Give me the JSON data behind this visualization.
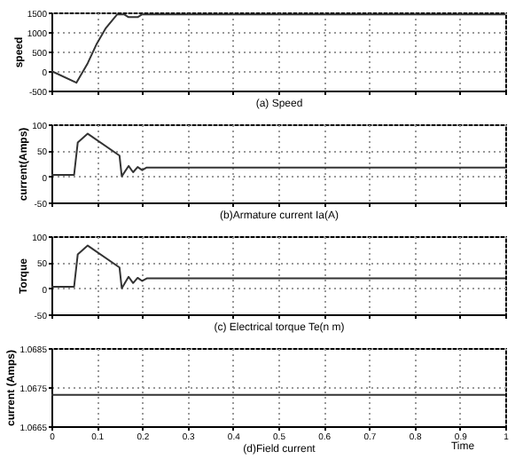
{
  "chart_data": [
    {
      "type": "line",
      "xlabel": "(a) Speed",
      "ylabel": "speed",
      "x": [
        0,
        0.055,
        0.08,
        0.1,
        0.12,
        0.145,
        0.16,
        0.17,
        0.19,
        0.2,
        1
      ],
      "values": [
        0,
        -300,
        200,
        700,
        1100,
        1450,
        1450,
        1380,
        1380,
        1450,
        1450
      ],
      "color": "#333333",
      "xlim": [
        0,
        1
      ],
      "xticks": [
        0,
        0.1,
        0.2,
        0.3,
        0.4,
        0.5,
        0.6,
        0.7,
        0.8,
        0.9,
        1
      ],
      "ylim": [
        -500,
        1500
      ],
      "yticks": [
        -500,
        0,
        500,
        1000,
        1500
      ],
      "grid": true,
      "tick_labels": "y"
    },
    {
      "type": "line",
      "xlabel": "(b)Armature current Ia(A)",
      "ylabel": "current(Amps)",
      "x": [
        0,
        0.05,
        0.058,
        0.08,
        0.15,
        0.155,
        0.17,
        0.18,
        0.19,
        0.2,
        0.21,
        1
      ],
      "values": [
        3,
        3,
        65,
        82,
        40,
        0,
        20,
        8,
        18,
        12,
        17,
        17
      ],
      "color": "#333333",
      "xlim": [
        0,
        1
      ],
      "xticks": [
        0,
        0.1,
        0.2,
        0.3,
        0.4,
        0.5,
        0.6,
        0.7,
        0.8,
        0.9,
        1
      ],
      "ylim": [
        -50,
        100
      ],
      "yticks": [
        -50,
        0,
        50,
        100
      ],
      "grid": true,
      "tick_labels": "y"
    },
    {
      "type": "line",
      "xlabel": "(c) Electrical torque Te(n m)",
      "ylabel": "Torque",
      "x": [
        0,
        0.05,
        0.058,
        0.08,
        0.15,
        0.155,
        0.17,
        0.18,
        0.19,
        0.2,
        0.21,
        1
      ],
      "values": [
        3,
        3,
        65,
        82,
        40,
        0,
        22,
        10,
        20,
        14,
        19,
        19
      ],
      "color": "#333333",
      "xlim": [
        0,
        1
      ],
      "xticks": [
        0,
        0.1,
        0.2,
        0.3,
        0.4,
        0.5,
        0.6,
        0.7,
        0.8,
        0.9,
        1
      ],
      "ylim": [
        -50,
        100
      ],
      "yticks": [
        -50,
        0,
        50,
        100
      ],
      "grid": true,
      "tick_labels": "y"
    },
    {
      "type": "line",
      "xlabel": "(d)Field current",
      "ylabel": "current (Amps)",
      "annotations": [
        "Time"
      ],
      "x": [
        0,
        1
      ],
      "values": [
        1.0673,
        1.0673
      ],
      "color": "#333333",
      "xlim": [
        0,
        1
      ],
      "xticks": [
        0,
        0.1,
        0.2,
        0.3,
        0.4,
        0.5,
        0.6,
        0.7,
        0.8,
        0.9,
        1
      ],
      "ylim": [
        1.0665,
        1.0685
      ],
      "yticks": [
        1.0665,
        1.0675,
        1.0685
      ],
      "grid": true
    }
  ]
}
